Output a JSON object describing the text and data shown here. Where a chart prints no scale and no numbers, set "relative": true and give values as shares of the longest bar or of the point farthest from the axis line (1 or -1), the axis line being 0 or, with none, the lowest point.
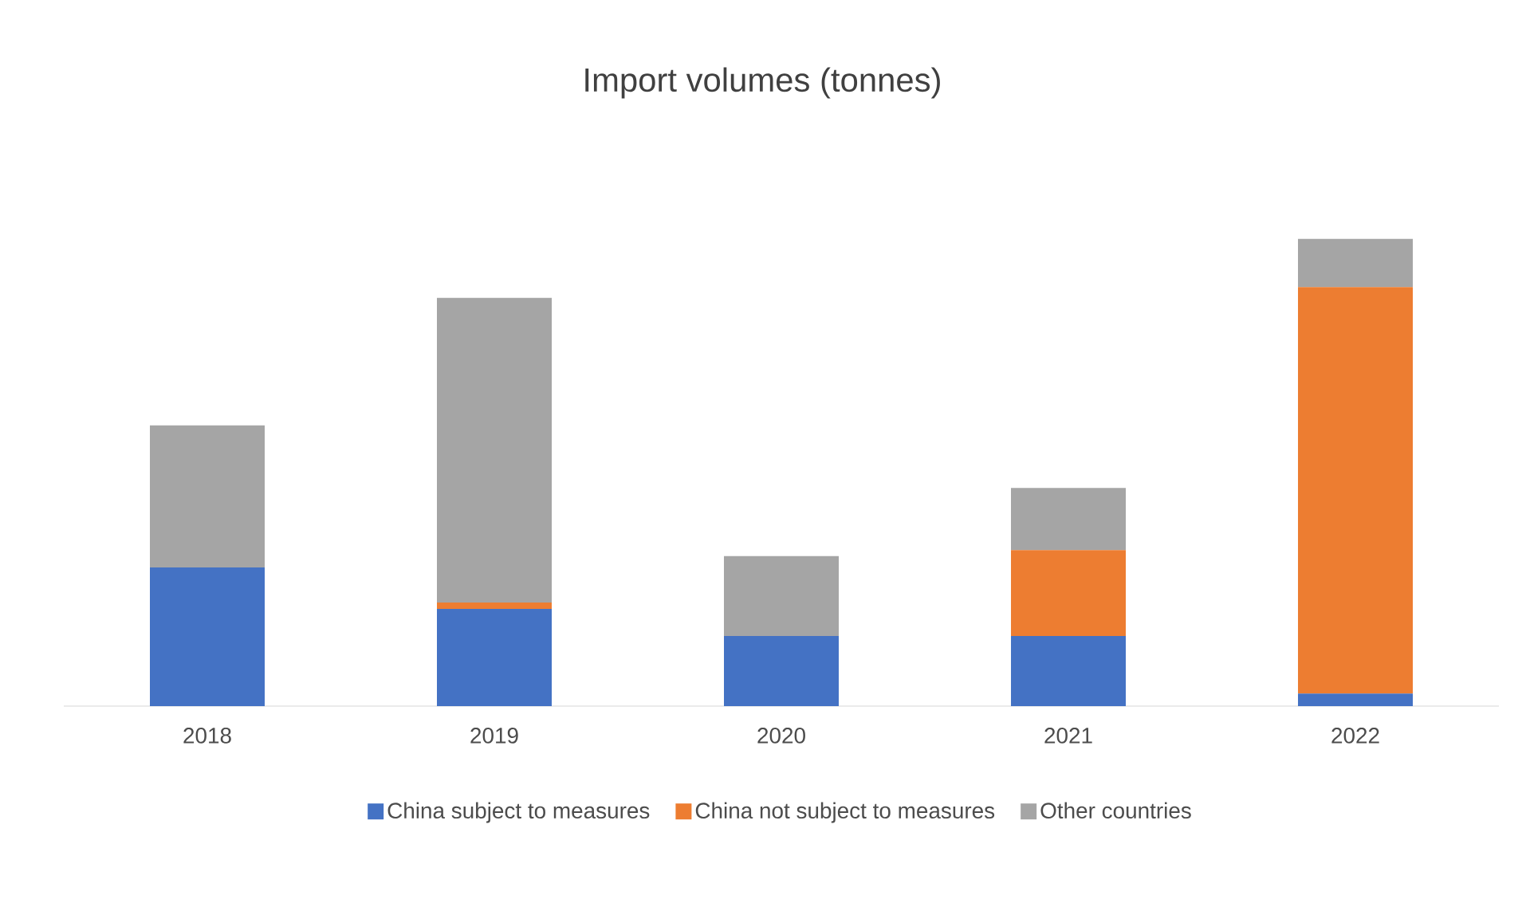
{
  "chart_data": {
    "type": "bar",
    "title": "Import volumes (tonnes)",
    "stacked": true,
    "relative": true,
    "legend": "bottom",
    "categories": [
      "2018",
      "2019",
      "2020",
      "2021",
      "2022"
    ],
    "series": [
      {
        "name": "China subject to measures",
        "color": "#4472c4",
        "values": [
          0.297,
          0.208,
          0.15,
          0.15,
          0.027
        ]
      },
      {
        "name": "China not subject to measures",
        "color": "#ed7d31",
        "values": [
          0,
          0.014,
          0,
          0.184,
          0.87
        ]
      },
      {
        "name": "Other countries",
        "color": "#a5a5a5",
        "values": [
          0.304,
          0.652,
          0.171,
          0.133,
          0.103
        ]
      }
    ]
  }
}
